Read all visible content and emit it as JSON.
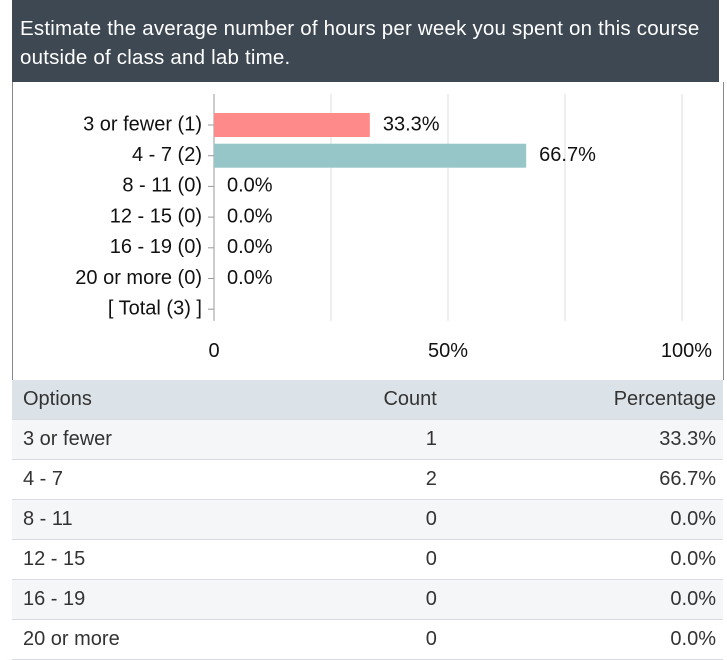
{
  "chart_data": {
    "type": "bar",
    "orientation": "horizontal",
    "title": "Estimate the average number of hours per week you spent on this course outside of class and lab time.",
    "categories": [
      "3 or fewer (1)",
      "4 - 7 (2)",
      "8 - 11 (0)",
      "12 - 15 (0)",
      "16 - 19 (0)",
      "20 or more (0)",
      "[ Total (3) ]"
    ],
    "values": [
      33.3,
      66.7,
      0,
      0,
      0,
      0,
      null
    ],
    "value_labels": [
      "33.3%",
      "66.7%",
      "0.0%",
      "0.0%",
      "0.0%",
      "0.0%",
      null
    ],
    "colors": [
      "#ff8a8a",
      "#96c6c8",
      null,
      null,
      null,
      null,
      null
    ],
    "xlim": [
      0,
      100
    ],
    "xticks": [
      0,
      {
        "value": 50,
        "label": "50%"
      },
      {
        "value": 100,
        "label": "100%"
      }
    ],
    "xgrid": [
      0,
      25,
      50,
      75,
      100
    ],
    "grid": true
  },
  "table": {
    "columns": [
      "Options",
      "Count",
      "Percentage"
    ],
    "rows": [
      [
        "3 or fewer",
        1,
        "33.3%"
      ],
      [
        "4 - 7",
        2,
        "66.7%"
      ],
      [
        "8 - 11",
        0,
        "0.0%"
      ],
      [
        "12 - 15",
        0,
        "0.0%"
      ],
      [
        "16 - 19",
        0,
        "0.0%"
      ],
      [
        "20 or more",
        0,
        "0.0%"
      ]
    ]
  }
}
